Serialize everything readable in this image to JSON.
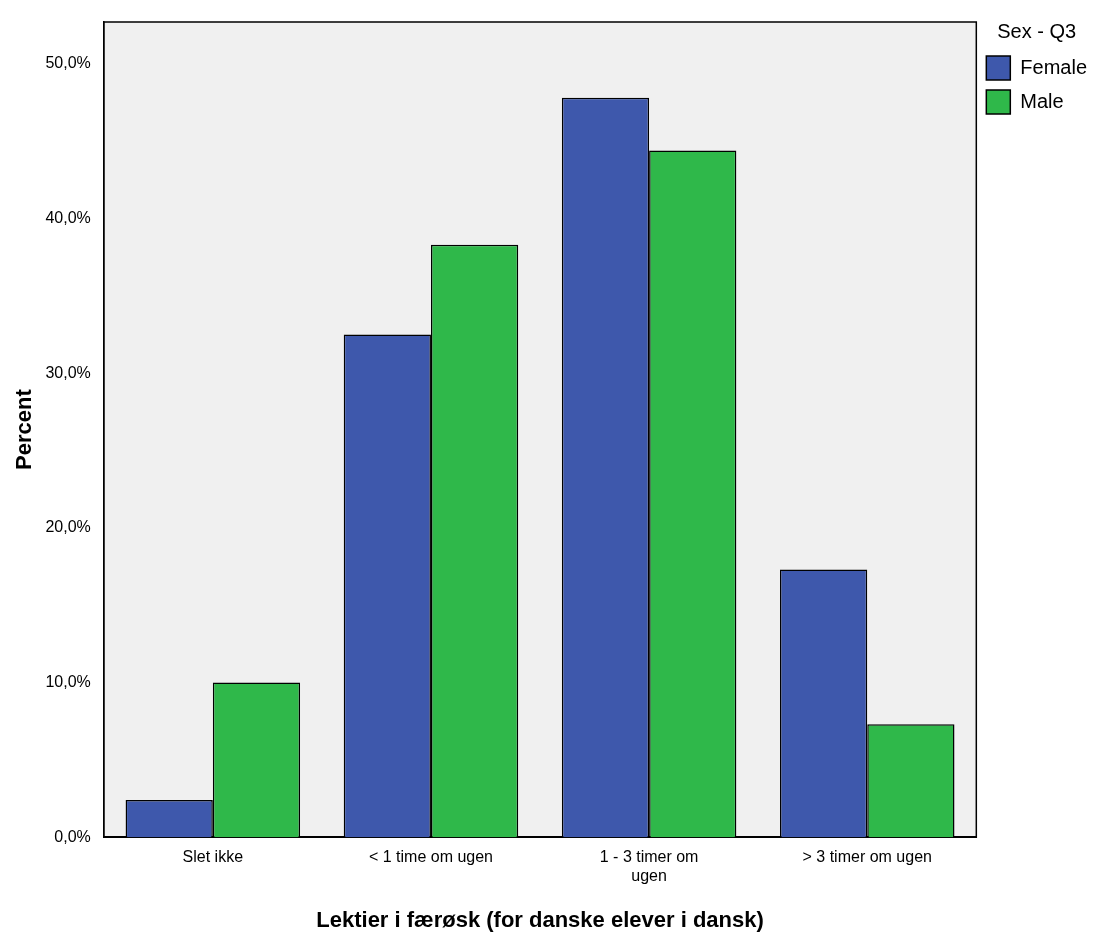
{
  "chart_data": {
    "type": "bar",
    "xlabel": "Lektier i færøsk (for danske elever i dansk)",
    "ylabel": "Percent",
    "legend_title": "Sex - Q3",
    "categories": [
      "Slet ikke",
      "< 1 time om ugen",
      "1 - 3 timer om ugen",
      "> 3 timer om ugen"
    ],
    "series": [
      {
        "name": "Female",
        "color": "#3e58ac",
        "values": [
          2.4,
          32.5,
          47.8,
          17.3
        ]
      },
      {
        "name": "Male",
        "color": "#2fb84a",
        "values": [
          10.0,
          38.3,
          44.4,
          7.3
        ]
      }
    ],
    "ylim": [
      0,
      52.7
    ],
    "yticks": [
      {
        "value": 0,
        "label": "0,0%"
      },
      {
        "value": 10,
        "label": "10,0%"
      },
      {
        "value": 20,
        "label": "20,0%"
      },
      {
        "value": 30,
        "label": "30,0%"
      },
      {
        "value": 40,
        "label": "40,0%"
      },
      {
        "value": 50,
        "label": "50,0%"
      }
    ],
    "grid": false,
    "legend": "top right"
  }
}
